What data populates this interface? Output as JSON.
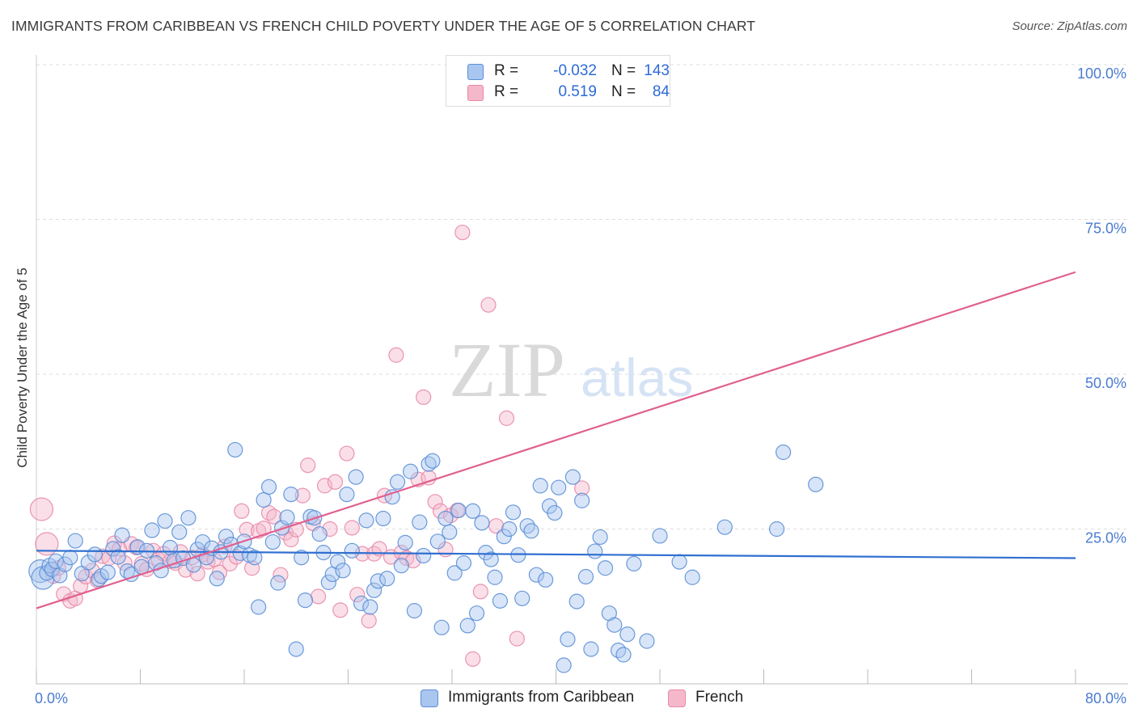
{
  "title": "IMMIGRANTS FROM CARIBBEAN VS FRENCH CHILD POVERTY UNDER THE AGE OF 5 CORRELATION CHART",
  "source": "Source: ZipAtlas.com",
  "watermark": {
    "zip": "ZIP",
    "atlas": "atlas"
  },
  "colors": {
    "blue_fill": "#a9c6ef",
    "blue_stroke": "#5b8fd6",
    "blue_line": "#2f6fd1",
    "pink_fill": "#f5b8cb",
    "pink_stroke": "#e889a8",
    "pink_line": "#e0608f",
    "tick_label": "#4a7bd0",
    "grid": "#dedede"
  },
  "legend": {
    "r_label": "R =",
    "n_label": "N =",
    "rows": [
      {
        "series": "Immigrants from Caribbean",
        "r": "-0.032",
        "n": "143",
        "color": "blue"
      },
      {
        "series": "French",
        "r": "0.519",
        "n": "84",
        "color": "pink"
      }
    ]
  },
  "chart_data": {
    "type": "scatter",
    "title": "IMMIGRANTS FROM CARIBBEAN VS FRENCH CHILD POVERTY UNDER THE AGE OF 5 CORRELATION CHART",
    "xlabel": "",
    "ylabel": "Child Poverty Under the Age of 5",
    "xlim": [
      0,
      80
    ],
    "ylim": [
      0,
      100
    ],
    "x_tick_labels": [
      "0.0%",
      "80.0%"
    ],
    "y_ticks": [
      25,
      50,
      75,
      100
    ],
    "y_tick_labels": [
      "25.0%",
      "50.0%",
      "75.0%",
      "100.0%"
    ],
    "grid": true,
    "legend_position": "bottom",
    "series": [
      {
        "name": "Immigrants from Caribbean",
        "color": "blue",
        "trend": {
          "x": [
            0,
            80
          ],
          "y": [
            21.5,
            20.3
          ]
        },
        "points": [
          [
            0.3,
            18.2
          ],
          [
            0.5,
            17.1
          ],
          [
            0.8,
            17.9
          ],
          [
            1.0,
            19.1
          ],
          [
            1.2,
            18.5
          ],
          [
            1.5,
            19.8
          ],
          [
            1.8,
            17.5
          ],
          [
            2.2,
            19.3
          ],
          [
            2.6,
            20.4
          ],
          [
            3.0,
            23.1
          ],
          [
            3.5,
            17.8
          ],
          [
            4.0,
            19.6
          ],
          [
            4.5,
            20.9
          ],
          [
            4.8,
            16.9
          ],
          [
            5.0,
            17.4
          ],
          [
            5.5,
            18.0
          ],
          [
            5.9,
            21.8
          ],
          [
            6.3,
            20.5
          ],
          [
            6.6,
            24.0
          ],
          [
            7.0,
            18.2
          ],
          [
            7.3,
            17.7
          ],
          [
            7.8,
            22.1
          ],
          [
            8.1,
            18.9
          ],
          [
            8.5,
            21.5
          ],
          [
            8.9,
            24.8
          ],
          [
            9.2,
            19.5
          ],
          [
            9.6,
            18.3
          ],
          [
            9.9,
            26.3
          ],
          [
            10.3,
            22.0
          ],
          [
            10.6,
            19.9
          ],
          [
            11.0,
            24.5
          ],
          [
            11.3,
            20.3
          ],
          [
            11.7,
            26.8
          ],
          [
            12.1,
            19.2
          ],
          [
            12.4,
            21.7
          ],
          [
            12.8,
            22.9
          ],
          [
            13.1,
            20.4
          ],
          [
            13.5,
            21.9
          ],
          [
            13.9,
            17.0
          ],
          [
            14.2,
            21.3
          ],
          [
            14.6,
            23.8
          ],
          [
            15.0,
            22.5
          ],
          [
            15.3,
            37.8
          ],
          [
            15.7,
            21.1
          ],
          [
            16.0,
            23.0
          ],
          [
            16.4,
            20.8
          ],
          [
            16.8,
            20.4
          ],
          [
            17.1,
            12.4
          ],
          [
            17.5,
            29.7
          ],
          [
            17.9,
            31.8
          ],
          [
            18.2,
            22.9
          ],
          [
            18.6,
            16.3
          ],
          [
            18.9,
            25.2
          ],
          [
            19.3,
            26.9
          ],
          [
            19.6,
            30.6
          ],
          [
            20.0,
            5.6
          ],
          [
            20.4,
            20.4
          ],
          [
            20.7,
            13.5
          ],
          [
            21.1,
            27.0
          ],
          [
            21.4,
            26.8
          ],
          [
            21.8,
            24.2
          ],
          [
            22.1,
            21.2
          ],
          [
            22.5,
            16.4
          ],
          [
            22.8,
            17.7
          ],
          [
            23.2,
            19.7
          ],
          [
            23.6,
            18.3
          ],
          [
            23.9,
            30.6
          ],
          [
            24.3,
            21.5
          ],
          [
            24.6,
            33.4
          ],
          [
            25.0,
            13.0
          ],
          [
            25.4,
            26.4
          ],
          [
            25.7,
            12.4
          ],
          [
            26.0,
            15.1
          ],
          [
            26.3,
            16.6
          ],
          [
            26.7,
            26.7
          ],
          [
            27.0,
            17.0
          ],
          [
            27.4,
            30.2
          ],
          [
            27.8,
            32.6
          ],
          [
            28.1,
            19.1
          ],
          [
            28.4,
            22.8
          ],
          [
            28.8,
            34.3
          ],
          [
            29.1,
            11.8
          ],
          [
            29.5,
            26.1
          ],
          [
            29.8,
            20.7
          ],
          [
            30.2,
            35.5
          ],
          [
            30.5,
            36.0
          ],
          [
            30.9,
            23.0
          ],
          [
            31.2,
            9.1
          ],
          [
            31.5,
            26.7
          ],
          [
            31.8,
            24.5
          ],
          [
            32.2,
            17.9
          ],
          [
            32.5,
            28.0
          ],
          [
            32.9,
            19.5
          ],
          [
            33.2,
            9.4
          ],
          [
            33.6,
            27.9
          ],
          [
            33.9,
            11.4
          ],
          [
            34.3,
            26.0
          ],
          [
            34.6,
            21.2
          ],
          [
            35.0,
            20.1
          ],
          [
            35.3,
            17.2
          ],
          [
            35.7,
            13.4
          ],
          [
            36.0,
            23.8
          ],
          [
            36.4,
            25.0
          ],
          [
            36.7,
            27.7
          ],
          [
            37.1,
            20.8
          ],
          [
            37.4,
            13.8
          ],
          [
            37.8,
            25.5
          ],
          [
            38.1,
            24.7
          ],
          [
            38.5,
            17.6
          ],
          [
            38.8,
            32.0
          ],
          [
            39.2,
            16.8
          ],
          [
            39.5,
            28.7
          ],
          [
            39.9,
            27.6
          ],
          [
            40.2,
            31.7
          ],
          [
            40.6,
            3.0
          ],
          [
            40.9,
            7.2
          ],
          [
            41.3,
            33.4
          ],
          [
            41.6,
            13.3
          ],
          [
            42.0,
            29.6
          ],
          [
            42.3,
            17.3
          ],
          [
            42.7,
            5.6
          ],
          [
            43.0,
            21.4
          ],
          [
            43.4,
            23.7
          ],
          [
            43.8,
            18.7
          ],
          [
            44.1,
            11.4
          ],
          [
            44.5,
            9.5
          ],
          [
            44.8,
            5.4
          ],
          [
            45.2,
            4.7
          ],
          [
            45.5,
            8.0
          ],
          [
            46.0,
            19.4
          ],
          [
            47.0,
            6.9
          ],
          [
            48.0,
            23.9
          ],
          [
            49.5,
            19.7
          ],
          [
            50.5,
            17.2
          ],
          [
            53.0,
            25.3
          ],
          [
            57.0,
            25.0
          ],
          [
            57.5,
            37.4
          ],
          [
            60.0,
            32.2
          ]
        ]
      },
      {
        "name": "French",
        "color": "pink",
        "trend": {
          "x": [
            0,
            80
          ],
          "y": [
            12.2,
            66.5
          ]
        },
        "points": [
          [
            0.4,
            28.2
          ],
          [
            0.8,
            22.6
          ],
          [
            1.3,
            17.4
          ],
          [
            1.7,
            18.7
          ],
          [
            2.1,
            14.5
          ],
          [
            2.6,
            13.4
          ],
          [
            3.0,
            13.8
          ],
          [
            3.4,
            15.8
          ],
          [
            3.8,
            17.3
          ],
          [
            4.3,
            18.3
          ],
          [
            4.7,
            16.7
          ],
          [
            5.1,
            20.6
          ],
          [
            5.6,
            20.3
          ],
          [
            6.0,
            22.7
          ],
          [
            6.4,
            21.8
          ],
          [
            6.8,
            19.5
          ],
          [
            7.3,
            22.6
          ],
          [
            7.7,
            22.0
          ],
          [
            8.1,
            19.4
          ],
          [
            8.5,
            18.5
          ],
          [
            9.0,
            21.5
          ],
          [
            9.4,
            20.1
          ],
          [
            9.8,
            21.0
          ],
          [
            10.3,
            19.8
          ],
          [
            10.7,
            19.5
          ],
          [
            11.1,
            21.3
          ],
          [
            11.5,
            18.4
          ],
          [
            12.0,
            20.4
          ],
          [
            12.4,
            17.8
          ],
          [
            12.8,
            20.9
          ],
          [
            13.2,
            19.7
          ],
          [
            13.7,
            20.1
          ],
          [
            14.1,
            18.0
          ],
          [
            14.5,
            22.2
          ],
          [
            14.9,
            19.4
          ],
          [
            15.4,
            20.5
          ],
          [
            15.8,
            27.9
          ],
          [
            16.2,
            24.9
          ],
          [
            16.6,
            18.7
          ],
          [
            17.1,
            24.7
          ],
          [
            17.5,
            25.1
          ],
          [
            17.9,
            27.6
          ],
          [
            18.3,
            27.0
          ],
          [
            18.8,
            17.6
          ],
          [
            19.2,
            24.4
          ],
          [
            19.6,
            23.3
          ],
          [
            20.0,
            24.9
          ],
          [
            20.5,
            30.4
          ],
          [
            20.9,
            35.3
          ],
          [
            21.3,
            25.9
          ],
          [
            21.7,
            14.1
          ],
          [
            22.2,
            32.0
          ],
          [
            22.6,
            25.0
          ],
          [
            23.0,
            32.6
          ],
          [
            23.4,
            11.9
          ],
          [
            23.9,
            37.2
          ],
          [
            24.3,
            25.2
          ],
          [
            24.7,
            14.4
          ],
          [
            25.1,
            21.0
          ],
          [
            25.6,
            10.2
          ],
          [
            26.0,
            21.0
          ],
          [
            26.4,
            21.8
          ],
          [
            26.8,
            30.4
          ],
          [
            27.3,
            20.5
          ],
          [
            27.7,
            53.1
          ],
          [
            28.1,
            21.2
          ],
          [
            28.5,
            20.3
          ],
          [
            29.0,
            19.9
          ],
          [
            29.4,
            33.0
          ],
          [
            29.8,
            46.3
          ],
          [
            30.2,
            33.3
          ],
          [
            30.7,
            29.4
          ],
          [
            31.1,
            27.9
          ],
          [
            31.5,
            21.7
          ],
          [
            31.9,
            27.2
          ],
          [
            32.4,
            28.0
          ],
          [
            32.8,
            72.9
          ],
          [
            33.6,
            4.0
          ],
          [
            34.2,
            14.9
          ],
          [
            34.8,
            61.2
          ],
          [
            35.4,
            25.5
          ],
          [
            36.2,
            42.9
          ],
          [
            42.0,
            31.6
          ],
          [
            37.0,
            7.3
          ]
        ]
      }
    ]
  },
  "axis": {
    "ylabel": "Child Poverty Under the Age of 5",
    "x_min_label": "0.0%",
    "x_max_label": "80.0%"
  }
}
